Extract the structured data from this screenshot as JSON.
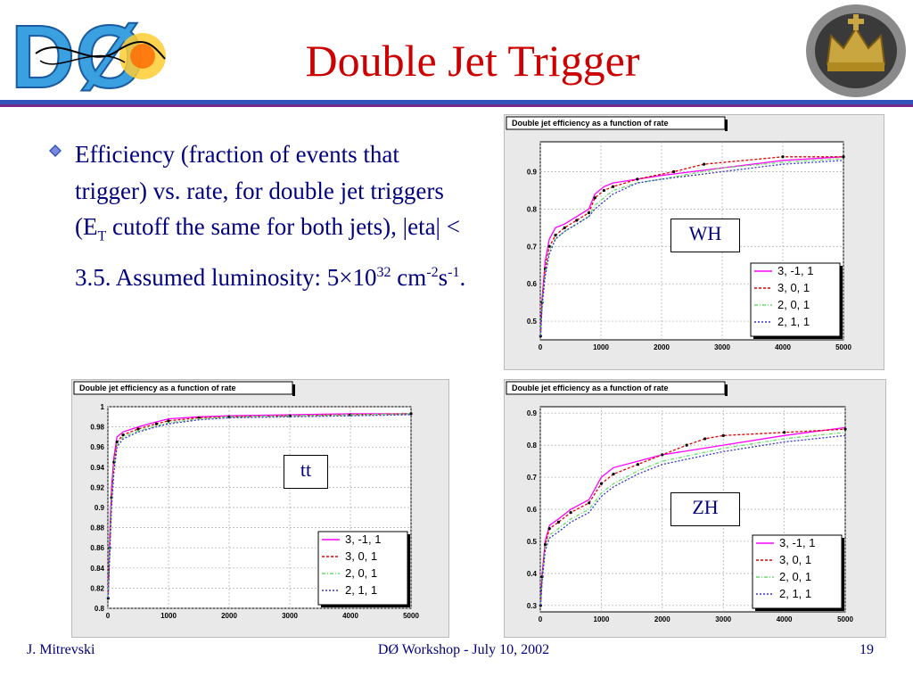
{
  "slide": {
    "title": "Double Jet Trigger",
    "colors": {
      "title": "#cc0000",
      "text": "#000080",
      "rule": "#3355bb"
    }
  },
  "logos": {
    "left": {
      "text": "DØ",
      "icon": "d0-experiment-logo"
    },
    "right": {
      "icon": "crown-seal-logo"
    }
  },
  "bullet": {
    "icon": "diamond-bullet-icon",
    "text_a": "Efficiency (fraction of events that trigger) vs. rate, for double jet triggers (E",
    "sub_t": "T",
    "text_b": " cutoff the same for both jets), |eta| < 3.5. Assumed luminosity: 5×10",
    "sup_32": "32",
    "text_c": " cm",
    "sup_m2": "-2",
    "text_d": "s",
    "sup_m1": "-1",
    "text_e": "."
  },
  "footer": {
    "left": "J. Mitrevski",
    "center": "DØ Workshop - July 10, 2002",
    "right": "19"
  },
  "legend": {
    "colors": [
      "#ff00ff",
      "#dd0000",
      "#66dd66",
      "#3333cc"
    ],
    "dashes": [
      "none",
      "3,2",
      "4,2,1,2",
      "2,2"
    ]
  },
  "chart_data": [
    {
      "type": "line",
      "title": "Double jet efficiency as a function of rate",
      "tag": "WH",
      "xlim": [
        0,
        5000
      ],
      "ylim": [
        0.45,
        0.98
      ],
      "xticks": [
        0,
        1000,
        2000,
        3000,
        4000,
        5000
      ],
      "yticks": [
        0.5,
        0.6,
        0.7,
        0.8,
        0.9
      ],
      "ytick_labels": [
        "0.5",
        "0.6",
        "0.7",
        "0.8",
        "0.9"
      ],
      "grid": true,
      "legend_position": "bottom-right",
      "series": [
        {
          "name": "3, -1, 1",
          "points": [
            [
              5,
              0.46
            ],
            [
              30,
              0.56
            ],
            [
              80,
              0.66
            ],
            [
              150,
              0.72
            ],
            [
              250,
              0.75
            ],
            [
              400,
              0.76
            ],
            [
              600,
              0.78
            ],
            [
              800,
              0.8
            ],
            [
              900,
              0.84
            ],
            [
              1050,
              0.86
            ],
            [
              1200,
              0.87
            ],
            [
              1600,
              0.88
            ],
            [
              2000,
              0.89
            ],
            [
              3000,
              0.91
            ],
            [
              4000,
              0.93
            ],
            [
              5000,
              0.94
            ]
          ]
        },
        {
          "name": "3, 0, 1",
          "points": [
            [
              5,
              0.46
            ],
            [
              30,
              0.55
            ],
            [
              80,
              0.64
            ],
            [
              150,
              0.7
            ],
            [
              250,
              0.73
            ],
            [
              400,
              0.75
            ],
            [
              600,
              0.77
            ],
            [
              800,
              0.79
            ],
            [
              900,
              0.83
            ],
            [
              1050,
              0.85
            ],
            [
              1200,
              0.86
            ],
            [
              1600,
              0.88
            ],
            [
              2200,
              0.9
            ],
            [
              2700,
              0.92
            ],
            [
              4000,
              0.94
            ],
            [
              5000,
              0.94
            ]
          ]
        },
        {
          "name": "2, 0, 1",
          "points": [
            [
              5,
              0.46
            ],
            [
              30,
              0.54
            ],
            [
              80,
              0.63
            ],
            [
              150,
              0.69
            ],
            [
              250,
              0.72
            ],
            [
              400,
              0.74
            ],
            [
              600,
              0.76
            ],
            [
              800,
              0.78
            ],
            [
              900,
              0.81
            ],
            [
              1050,
              0.83
            ],
            [
              1200,
              0.85
            ],
            [
              1600,
              0.87
            ],
            [
              2000,
              0.88
            ],
            [
              3000,
              0.91
            ],
            [
              4000,
              0.925
            ],
            [
              5000,
              0.935
            ]
          ]
        },
        {
          "name": "2, 1, 1",
          "points": [
            [
              5,
              0.46
            ],
            [
              30,
              0.54
            ],
            [
              80,
              0.62
            ],
            [
              150,
              0.68
            ],
            [
              250,
              0.72
            ],
            [
              400,
              0.74
            ],
            [
              600,
              0.76
            ],
            [
              800,
              0.78
            ],
            [
              900,
              0.8
            ],
            [
              1050,
              0.82
            ],
            [
              1200,
              0.84
            ],
            [
              1600,
              0.87
            ],
            [
              2000,
              0.88
            ],
            [
              3000,
              0.9
            ],
            [
              4000,
              0.92
            ],
            [
              5000,
              0.93
            ]
          ]
        }
      ]
    },
    {
      "type": "line",
      "title": "Double jet efficiency as a function of rate",
      "tag": "tt",
      "xlim": [
        0,
        5000
      ],
      "ylim": [
        0.8,
        1.0
      ],
      "xticks": [
        0,
        1000,
        2000,
        3000,
        4000,
        5000
      ],
      "yticks": [
        0.8,
        0.82,
        0.84,
        0.86,
        0.88,
        0.9,
        0.92,
        0.94,
        0.96,
        0.98,
        1.0
      ],
      "ytick_labels": [
        "0.8",
        "0.82",
        "0.84",
        "0.86",
        "0.88",
        "0.9",
        "0.92",
        "0.94",
        "0.96",
        "0.98",
        "1"
      ],
      "grid": true,
      "legend_position": "bottom-right",
      "series": [
        {
          "name": "3, -1, 1",
          "points": [
            [
              5,
              0.81
            ],
            [
              30,
              0.87
            ],
            [
              60,
              0.92
            ],
            [
              100,
              0.95
            ],
            [
              150,
              0.97
            ],
            [
              250,
              0.975
            ],
            [
              500,
              0.98
            ],
            [
              800,
              0.985
            ],
            [
              1000,
              0.988
            ],
            [
              1500,
              0.99
            ],
            [
              2000,
              0.991
            ],
            [
              3000,
              0.992
            ],
            [
              4000,
              0.993
            ],
            [
              5000,
              0.993
            ]
          ]
        },
        {
          "name": "3, 0, 1",
          "points": [
            [
              5,
              0.81
            ],
            [
              30,
              0.86
            ],
            [
              60,
              0.91
            ],
            [
              100,
              0.945
            ],
            [
              150,
              0.965
            ],
            [
              250,
              0.972
            ],
            [
              500,
              0.978
            ],
            [
              800,
              0.983
            ],
            [
              1000,
              0.986
            ],
            [
              1500,
              0.989
            ],
            [
              2000,
              0.99
            ],
            [
              3000,
              0.991
            ],
            [
              4000,
              0.992
            ],
            [
              5000,
              0.993
            ]
          ]
        },
        {
          "name": "2, 0, 1",
          "points": [
            [
              5,
              0.81
            ],
            [
              30,
              0.86
            ],
            [
              60,
              0.905
            ],
            [
              100,
              0.94
            ],
            [
              150,
              0.962
            ],
            [
              250,
              0.97
            ],
            [
              500,
              0.976
            ],
            [
              800,
              0.981
            ],
            [
              1000,
              0.984
            ],
            [
              1500,
              0.988
            ],
            [
              2000,
              0.99
            ],
            [
              3000,
              0.991
            ],
            [
              4000,
              0.992
            ],
            [
              5000,
              0.993
            ]
          ]
        },
        {
          "name": "2, 1, 1",
          "points": [
            [
              5,
              0.81
            ],
            [
              30,
              0.85
            ],
            [
              60,
              0.9
            ],
            [
              100,
              0.935
            ],
            [
              150,
              0.96
            ],
            [
              250,
              0.968
            ],
            [
              500,
              0.975
            ],
            [
              800,
              0.98
            ],
            [
              1000,
              0.983
            ],
            [
              1500,
              0.987
            ],
            [
              2000,
              0.989
            ],
            [
              3000,
              0.99
            ],
            [
              4000,
              0.991
            ],
            [
              5000,
              0.992
            ]
          ]
        }
      ]
    },
    {
      "type": "line",
      "title": "Double jet efficiency as a function of rate",
      "tag": "ZH",
      "xlim": [
        0,
        5000
      ],
      "ylim": [
        0.28,
        0.92
      ],
      "xticks": [
        0,
        1000,
        2000,
        3000,
        4000,
        5000
      ],
      "yticks": [
        0.3,
        0.4,
        0.5,
        0.6,
        0.7,
        0.8,
        0.9
      ],
      "ytick_labels": [
        "0.3",
        "0.4",
        "0.5",
        "0.6",
        "0.7",
        "0.8",
        "0.9"
      ],
      "grid": true,
      "legend_position": "bottom-right",
      "series": [
        {
          "name": "3, -1, 1",
          "points": [
            [
              5,
              0.3
            ],
            [
              30,
              0.4
            ],
            [
              80,
              0.5
            ],
            [
              150,
              0.55
            ],
            [
              300,
              0.57
            ],
            [
              500,
              0.6
            ],
            [
              800,
              0.63
            ],
            [
              1000,
              0.7
            ],
            [
              1200,
              0.73
            ],
            [
              1600,
              0.75
            ],
            [
              2000,
              0.77
            ],
            [
              3000,
              0.8
            ],
            [
              4000,
              0.83
            ],
            [
              5000,
              0.855
            ]
          ]
        },
        {
          "name": "3, 0, 1",
          "points": [
            [
              5,
              0.3
            ],
            [
              30,
              0.39
            ],
            [
              80,
              0.49
            ],
            [
              150,
              0.54
            ],
            [
              300,
              0.56
            ],
            [
              500,
              0.59
            ],
            [
              800,
              0.62
            ],
            [
              1000,
              0.68
            ],
            [
              1200,
              0.71
            ],
            [
              1600,
              0.74
            ],
            [
              2000,
              0.77
            ],
            [
              2400,
              0.8
            ],
            [
              2700,
              0.82
            ],
            [
              3000,
              0.83
            ],
            [
              4000,
              0.84
            ],
            [
              5000,
              0.85
            ]
          ]
        },
        {
          "name": "2, 0, 1",
          "points": [
            [
              5,
              0.3
            ],
            [
              30,
              0.38
            ],
            [
              80,
              0.48
            ],
            [
              150,
              0.52
            ],
            [
              300,
              0.54
            ],
            [
              500,
              0.57
            ],
            [
              800,
              0.6
            ],
            [
              1000,
              0.65
            ],
            [
              1200,
              0.68
            ],
            [
              1600,
              0.72
            ],
            [
              2000,
              0.75
            ],
            [
              3000,
              0.79
            ],
            [
              4000,
              0.82
            ],
            [
              5000,
              0.84
            ]
          ]
        },
        {
          "name": "2, 1, 1",
          "points": [
            [
              5,
              0.3
            ],
            [
              30,
              0.38
            ],
            [
              80,
              0.47
            ],
            [
              150,
              0.51
            ],
            [
              300,
              0.53
            ],
            [
              500,
              0.56
            ],
            [
              800,
              0.59
            ],
            [
              1000,
              0.64
            ],
            [
              1200,
              0.67
            ],
            [
              1600,
              0.71
            ],
            [
              2000,
              0.74
            ],
            [
              3000,
              0.78
            ],
            [
              4000,
              0.81
            ],
            [
              5000,
              0.83
            ]
          ]
        }
      ]
    }
  ]
}
